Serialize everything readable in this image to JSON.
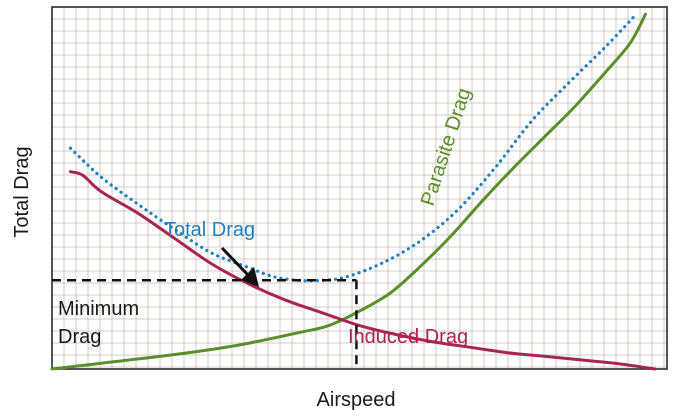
{
  "chart_data": {
    "type": "line",
    "title": "",
    "xlabel": "Airspeed",
    "ylabel": "Total Drag",
    "xlim": [
      0,
      100
    ],
    "ylim": [
      0,
      100
    ],
    "grid": true,
    "legend": "none",
    "series": [
      {
        "name": "Total Drag",
        "style": "dotted",
        "color": "#1f7fc1",
        "x": [
          3,
          8,
          14,
          20,
          26,
          32,
          36,
          40,
          44,
          48,
          54,
          60,
          66,
          72,
          78,
          84,
          90,
          95
        ],
        "y": [
          61,
          53,
          45.5,
          38.5,
          32,
          28,
          25.5,
          24.5,
          24.5,
          25.5,
          29.5,
          35.5,
          44,
          55.5,
          68.5,
          79,
          89,
          98
        ]
      },
      {
        "name": "Parasite Drag",
        "style": "solid",
        "color": "#5a8f29",
        "x": [
          0,
          10,
          20,
          30,
          40,
          45,
          50,
          55,
          60,
          65,
          70,
          75,
          80,
          85,
          90,
          94,
          96.5
        ],
        "y": [
          0,
          2,
          4,
          6.5,
          10,
          12,
          16,
          21,
          28.5,
          37,
          46.5,
          55.5,
          64,
          72.5,
          82,
          90,
          98
        ]
      },
      {
        "name": "Induced Drag",
        "style": "solid",
        "color": "#a7264e",
        "x": [
          3,
          5,
          8,
          14,
          20,
          26,
          32,
          38,
          44,
          50,
          56,
          62,
          68,
          74,
          80,
          86,
          92,
          98
        ],
        "y": [
          54.5,
          53.5,
          49,
          43,
          36,
          29,
          23.5,
          19,
          15.5,
          12,
          9.5,
          7.5,
          6,
          4.5,
          3.5,
          2.5,
          1.5,
          0
        ]
      }
    ],
    "annotations": {
      "total_drag_label": "Total Drag",
      "parasite_drag_label": "Parasite Drag",
      "induced_drag_label": "Induced Drag",
      "minimum_drag_line1": "Minimum",
      "minimum_drag_line2": "Drag",
      "minimum_point": {
        "x": 49.5,
        "y": 24.5
      }
    }
  }
}
